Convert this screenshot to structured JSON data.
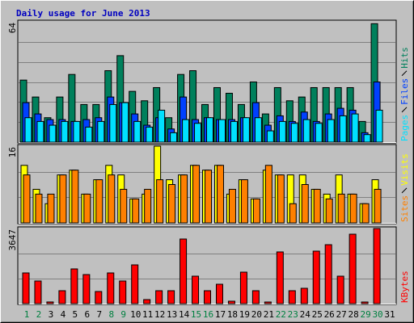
{
  "title": "Daily usage for June 2013",
  "chart_data": [
    {
      "type": "bar",
      "ylim": [
        0,
        64
      ],
      "yticks": [
        64
      ],
      "gridlines": [
        10.67,
        21.33,
        32,
        42.67,
        53.33
      ],
      "series": [
        {
          "name": "Hits",
          "color": "#00805c",
          "values": [
            33,
            24,
            13,
            24,
            36,
            20,
            20,
            38,
            46,
            27,
            22,
            29,
            13,
            36,
            38,
            20,
            29,
            26,
            20,
            32,
            15,
            29,
            22,
            24,
            29,
            29,
            29,
            29,
            11,
            63,
            null
          ]
        },
        {
          "name": "Files",
          "color": "#0040ff",
          "values": [
            21,
            15,
            12,
            12,
            11,
            12,
            13,
            24,
            21,
            15,
            9,
            13,
            7,
            24,
            12,
            13,
            12,
            12,
            13,
            21,
            9,
            14,
            11,
            16,
            11,
            15,
            18,
            17,
            5,
            32,
            null
          ]
        },
        {
          "name": "Pages",
          "color": "#00e0ff",
          "values": [
            13,
            11,
            9,
            11,
            11,
            8,
            11,
            20,
            21,
            11,
            8,
            17,
            5,
            12,
            10,
            13,
            12,
            11,
            13,
            13,
            6,
            11,
            10,
            12,
            10,
            12,
            14,
            15,
            4,
            17,
            null
          ]
        }
      ]
    },
    {
      "type": "bar",
      "ylim": [
        0,
        16
      ],
      "yticks": [
        16
      ],
      "gridlines": [
        5.33,
        10.67
      ],
      "series": [
        {
          "name": "Visits",
          "color": "#ffff00",
          "values": [
            12,
            7,
            4,
            10,
            11,
            6,
            9,
            12,
            10,
            5,
            6,
            16,
            9,
            10,
            12,
            11,
            12,
            6,
            9,
            5,
            11,
            10,
            10,
            10,
            7,
            6,
            10,
            6,
            4,
            9,
            null
          ]
        },
        {
          "name": "Sites",
          "color": "#ff8000",
          "values": [
            10,
            6,
            6,
            10,
            11,
            6,
            9,
            10,
            7,
            5,
            7,
            9,
            8,
            10,
            12,
            11,
            12,
            7,
            9,
            5,
            12,
            10,
            4,
            8,
            7,
            5,
            6,
            6,
            4,
            7,
            null
          ]
        }
      ]
    },
    {
      "type": "bar",
      "ylim": [
        0,
        3647
      ],
      "yticks": [
        3647
      ],
      "gridlines": [
        1215.67,
        2431.33
      ],
      "categories": [
        "1",
        "2",
        "3",
        "4",
        "5",
        "6",
        "7",
        "8",
        "9",
        "10",
        "11",
        "12",
        "13",
        "14",
        "15",
        "16",
        "17",
        "18",
        "19",
        "20",
        "21",
        "22",
        "23",
        "24",
        "25",
        "26",
        "27",
        "28",
        "29",
        "30",
        "31"
      ],
      "category_colors": [
        "#008040",
        "#008040",
        "#000000",
        "#000000",
        "#000000",
        "#000000",
        "#000000",
        "#008040",
        "#008040",
        "#000000",
        "#000000",
        "#000000",
        "#000000",
        "#000000",
        "#008040",
        "#008040",
        "#000000",
        "#000000",
        "#000000",
        "#000000",
        "#000000",
        "#008040",
        "#008040",
        "#000000",
        "#000000",
        "#000000",
        "#000000",
        "#000000",
        "#008040",
        "#008040",
        "#000000"
      ],
      "series": [
        {
          "name": "KBytes",
          "color": "#ff0000",
          "values": [
            1490,
            1098,
            80,
            627,
            1686,
            1411,
            588,
            1490,
            1098,
            1882,
            196,
            627,
            627,
            3137,
            1333,
            627,
            941,
            118,
            1529,
            627,
            78,
            2510,
            627,
            745,
            2549,
            2862,
            1333,
            3372,
            78,
            3647,
            null
          ]
        }
      ]
    }
  ]
}
